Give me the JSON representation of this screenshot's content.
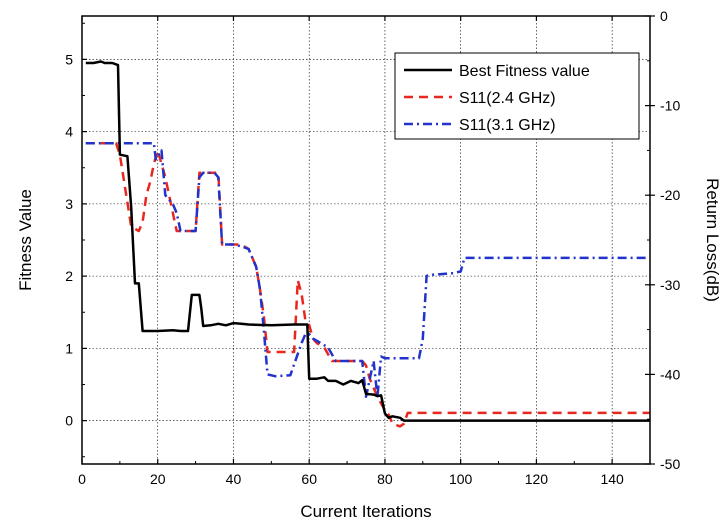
{
  "chart_data": {
    "type": "line",
    "title": "",
    "xlabel": "Current Iterations",
    "ylabel_left": "Fitness Value",
    "ylabel_right": "Return Loss(dB)",
    "xlim": [
      0,
      150
    ],
    "ylim_left": [
      -0.6,
      5.6
    ],
    "ylim_right": [
      -50,
      0
    ],
    "xticks": [
      "0",
      "20",
      "40",
      "60",
      "80",
      "100",
      "120",
      "140"
    ],
    "xtick_values": [
      0,
      20,
      40,
      60,
      80,
      100,
      120,
      140
    ],
    "yticks_left": [
      "0",
      "1",
      "2",
      "3",
      "4",
      "5"
    ],
    "ytick_values_left": [
      0,
      1,
      2,
      3,
      4,
      5
    ],
    "yticks_right": [
      "0",
      "-10",
      "-20",
      "-30",
      "-40",
      "-50"
    ],
    "ytick_values_right": [
      0,
      -10,
      -20,
      -30,
      -40,
      -50
    ],
    "grid": true,
    "legend_position": "top-right",
    "series": [
      {
        "name": "Best Fitness value",
        "axis": "left",
        "color": "#000000",
        "dash": "solid",
        "x": [
          1,
          3,
          5,
          6,
          8,
          9.5,
          10,
          12,
          13,
          14,
          15,
          16,
          20,
          24,
          26,
          28,
          29,
          31,
          31.5,
          32,
          34,
          36,
          38,
          40,
          42,
          44,
          50,
          56,
          58,
          59.5,
          60,
          62,
          64,
          65,
          67,
          69,
          71,
          73,
          74,
          75,
          77,
          78,
          79,
          80,
          81,
          82,
          84,
          85,
          86,
          100,
          150
        ],
        "y": [
          4.95,
          4.95,
          4.97,
          4.95,
          4.95,
          4.92,
          3.68,
          3.66,
          2.95,
          1.9,
          1.9,
          1.24,
          1.24,
          1.25,
          1.24,
          1.24,
          1.74,
          1.74,
          1.55,
          1.31,
          1.32,
          1.34,
          1.32,
          1.35,
          1.34,
          1.33,
          1.32,
          1.33,
          1.33,
          1.33,
          0.58,
          0.58,
          0.6,
          0.55,
          0.55,
          0.5,
          0.55,
          0.52,
          0.56,
          0.37,
          0.36,
          0.34,
          0.35,
          0.1,
          0.04,
          0.06,
          0.04,
          0.0,
          0.0,
          0.0,
          0.0
        ]
      },
      {
        "name": "S11(2.4 GHz)",
        "axis": "right",
        "color": "#e8281e",
        "dash": "dashed",
        "x": [
          1,
          9,
          10,
          13,
          15,
          16,
          17,
          18,
          19,
          20,
          22,
          24,
          25,
          27,
          30,
          31,
          32,
          35,
          36,
          37,
          40,
          42,
          44,
          46,
          47,
          48,
          49,
          53,
          54,
          56,
          57,
          58,
          59,
          60,
          61,
          62,
          64,
          66,
          68,
          72,
          74,
          75,
          76,
          78,
          80,
          81,
          82,
          84,
          85,
          86,
          88,
          150
        ],
        "y": [
          -14.2,
          -14.2,
          -15.5,
          -23.5,
          -24,
          -23,
          -20,
          -18.5,
          -16.5,
          -15,
          -18,
          -22,
          -24,
          -24,
          -24,
          -17.5,
          -17.5,
          -17.5,
          -17.5,
          -25.5,
          -25.5,
          -25.5,
          -26,
          -28,
          -30.5,
          -33.5,
          -37.5,
          -37.5,
          -37.5,
          -37.5,
          -29.5,
          -31,
          -34,
          -34.5,
          -36,
          -36.5,
          -37,
          -38.5,
          -38.5,
          -38.5,
          -38.5,
          -39,
          -40.5,
          -42.5,
          -44,
          -44.5,
          -45.5,
          -45.8,
          -45.5,
          -44.3,
          -44.3,
          -44.3
        ]
      },
      {
        "name": "S11(3.1 GHz)",
        "axis": "right",
        "color": "#2233cc",
        "dash": "dashdot",
        "x": [
          1,
          19,
          19.5,
          21,
          22,
          24,
          25,
          26,
          27,
          28,
          30,
          31,
          32,
          33,
          35,
          36,
          37,
          38,
          40,
          42,
          44,
          46,
          47,
          48,
          49,
          51,
          55,
          58,
          59,
          60,
          61,
          63,
          65,
          67,
          70,
          73,
          74,
          75,
          77,
          78,
          79,
          80,
          81,
          85,
          89,
          90,
          91,
          92,
          98,
          100,
          101,
          105,
          150
        ],
        "y": [
          -14.2,
          -14.2,
          -16,
          -15,
          -20,
          -21,
          -22,
          -24,
          -24,
          -24,
          -24,
          -18,
          -17.5,
          -17.5,
          -17.5,
          -18,
          -25.5,
          -25.5,
          -25.5,
          -25.7,
          -26,
          -28,
          -30.5,
          -35,
          -40,
          -40.2,
          -40.1,
          -36.5,
          -35.5,
          -35.5,
          -36,
          -36.5,
          -37,
          -38.5,
          -38.5,
          -38.5,
          -38.5,
          -42.5,
          -38.5,
          -42.5,
          -38,
          -38.2,
          -38.2,
          -38.2,
          -38.2,
          -36,
          -29,
          -28.9,
          -28.7,
          -28.5,
          -27,
          -27,
          -27
        ]
      }
    ]
  }
}
